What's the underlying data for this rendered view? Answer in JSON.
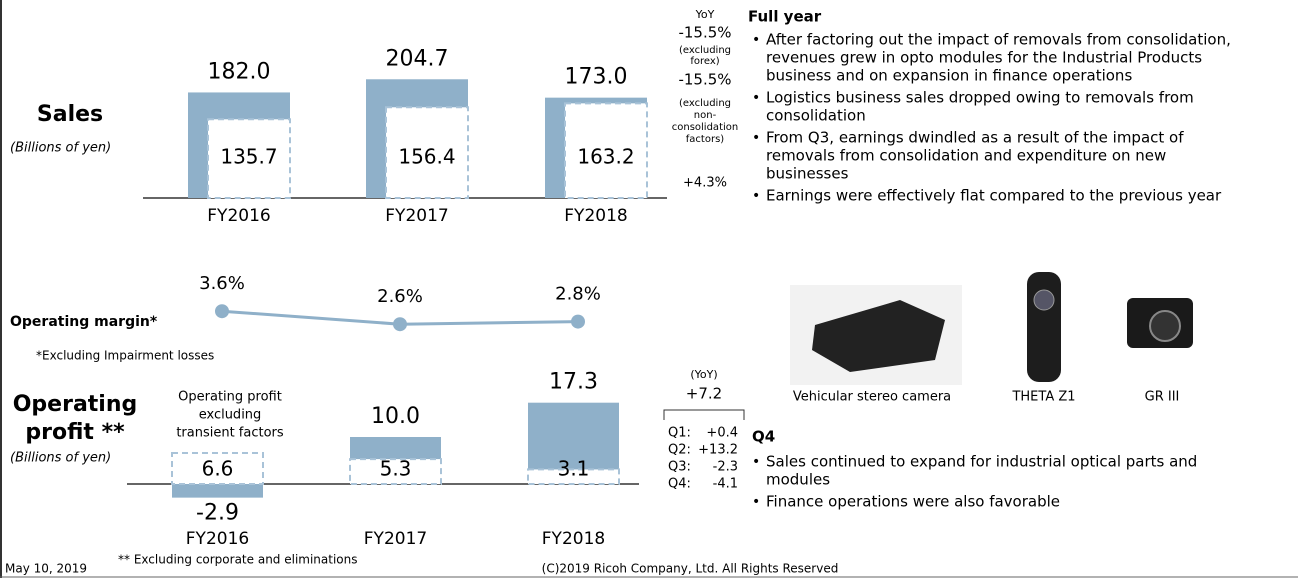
{
  "chart_data": [
    {
      "type": "bar",
      "categories": [
        "FY2016",
        "FY2017",
        "FY2018"
      ],
      "series": [
        {
          "color": "#8fb0c9",
          "dashed": false,
          "values": [
            182.0,
            204.7,
            173.0
          ],
          "value_labels": [
            "182.0",
            "204.7",
            "173.0"
          ]
        },
        {
          "color": "#a9c3d8",
          "dashed": true,
          "values": [
            135.7,
            156.4,
            163.2
          ],
          "value_labels": [
            "135.7",
            "156.4",
            "163.2"
          ]
        }
      ]
    },
    {
      "type": "line",
      "categories": [
        "FY2016",
        "FY2017",
        "FY2018"
      ],
      "color": "#8fb0c9",
      "values": [
        3.6,
        2.6,
        2.8
      ],
      "value_labels": [
        "3.6%",
        "2.6%",
        "2.8%"
      ]
    },
    {
      "type": "bar",
      "categories": [
        "FY2016",
        "FY2017",
        "FY2018"
      ],
      "series": [
        {
          "color": "#8fb0c9",
          "dashed": false,
          "values": [
            -2.9,
            10.0,
            17.3
          ],
          "value_labels": [
            "-2.9",
            "10.0",
            "17.3"
          ]
        },
        {
          "color": "#a9c3d8",
          "dashed": true,
          "values": [
            6.6,
            5.3,
            3.1
          ],
          "value_labels": [
            "6.6",
            "5.3",
            "3.1"
          ]
        }
      ]
    }
  ],
  "left": {
    "sales": "Sales",
    "sales_unit": "(Billions of yen)",
    "margin": "Operating margin*",
    "margin_note": "*Excluding Impairment losses",
    "profit": [
      "Operating",
      "profit **"
    ],
    "profit_unit": "(Billions of yen)",
    "profit_annotation": [
      "Operating profit",
      "excluding",
      "transient factors"
    ]
  },
  "yoy_sales": {
    "heading": "YoY",
    "total": "-15.5%",
    "forex_note": [
      "(excluding",
      "forex)"
    ],
    "forex": "-15.5%",
    "cons_note": [
      "(excluding",
      "non-",
      "consolidation",
      "factors)"
    ],
    "cons": "+4.3%"
  },
  "yoy_profit": {
    "heading": "(YoY)",
    "total": "+7.2",
    "quarters": [
      {
        "label": "Q1:",
        "value": "+0.4"
      },
      {
        "label": "Q2:",
        "value": "+13.2"
      },
      {
        "label": "Q3:",
        "value": "-2.3"
      },
      {
        "label": "Q4:",
        "value": "-4.1"
      }
    ]
  },
  "full_year": {
    "title": "Full year",
    "bullets": [
      [
        "After factoring out the impact of removals from consolidation,",
        "revenues grew in opto modules for the Industrial Products",
        "business and on expansion in finance operations"
      ],
      [
        "Logistics business sales dropped owing to removals from",
        "consolidation"
      ],
      [
        "From Q3, earnings dwindled as a result of the impact of",
        "removals from consolidation and expenditure on new",
        "businesses"
      ],
      [
        "Earnings were effectively flat compared to the previous year"
      ]
    ]
  },
  "products": [
    "Vehicular stereo camera",
    "THETA Z1",
    "GR III"
  ],
  "q4": {
    "title": "Q4",
    "bullets": [
      [
        "Sales continued to expand for industrial optical parts and",
        "modules"
      ],
      [
        "Finance operations were also favorable"
      ]
    ]
  },
  "footer": {
    "date": "May 10, 2019",
    "note": "** Excluding corporate and eliminations",
    "copyright": "(C)2019 Ricoh Company, Ltd. All Rights Reserved"
  }
}
